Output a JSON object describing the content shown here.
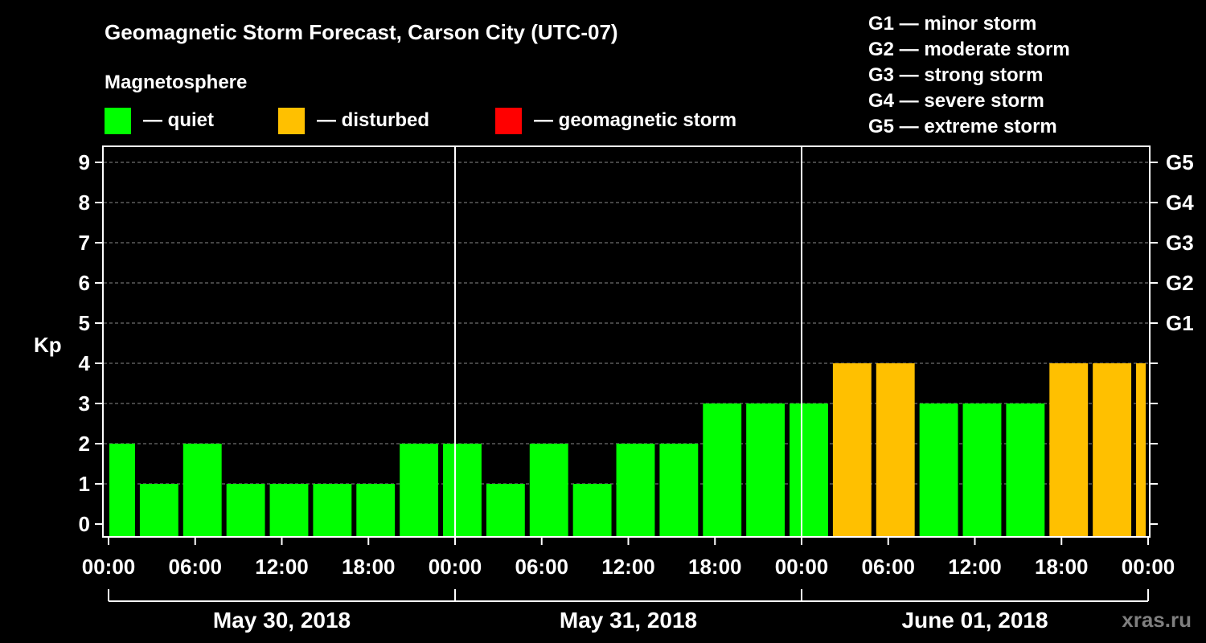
{
  "chart_data": {
    "type": "bar",
    "title": "Geomagnetic Storm Forecast, Carson City (UTC-07)",
    "legend_title": "Magnetosphere",
    "legend": [
      {
        "label": "— quiet",
        "color": "#00ff00"
      },
      {
        "label": "— disturbed",
        "color": "#ffc000"
      },
      {
        "label": "— geomagnetic storm",
        "color": "#ff0000"
      }
    ],
    "storm_scale": [
      "G1 — minor storm",
      "G2 — moderate storm",
      "G3 — strong storm",
      "G4 — severe storm",
      "G5 — extreme storm"
    ],
    "ylabel": "Kp",
    "ylim": [
      0,
      9
    ],
    "y_ticks": [
      "0",
      "1",
      "2",
      "3",
      "4",
      "5",
      "6",
      "7",
      "8",
      "9"
    ],
    "g_ticks": [
      {
        "kp": 5,
        "label": "G1"
      },
      {
        "kp": 6,
        "label": "G2"
      },
      {
        "kp": 7,
        "label": "G3"
      },
      {
        "kp": 8,
        "label": "G4"
      },
      {
        "kp": 9,
        "label": "G5"
      }
    ],
    "x_hours_total": 72,
    "x_tick_labels": [
      "00:00",
      "06:00",
      "12:00",
      "18:00",
      "00:00",
      "06:00",
      "12:00",
      "18:00",
      "00:00",
      "06:00",
      "12:00",
      "18:00",
      "00:00"
    ],
    "day_labels": [
      "May 30, 2018",
      "May 31, 2018",
      "June 01, 2018"
    ],
    "bars": [
      {
        "start": 0,
        "end": 2,
        "kp": 2,
        "state": "quiet"
      },
      {
        "start": 2,
        "end": 5,
        "kp": 1,
        "state": "quiet"
      },
      {
        "start": 5,
        "end": 8,
        "kp": 2,
        "state": "quiet"
      },
      {
        "start": 8,
        "end": 11,
        "kp": 1,
        "state": "quiet"
      },
      {
        "start": 11,
        "end": 14,
        "kp": 1,
        "state": "quiet"
      },
      {
        "start": 14,
        "end": 17,
        "kp": 1,
        "state": "quiet"
      },
      {
        "start": 17,
        "end": 20,
        "kp": 1,
        "state": "quiet"
      },
      {
        "start": 20,
        "end": 23,
        "kp": 2,
        "state": "quiet"
      },
      {
        "start": 23,
        "end": 26,
        "kp": 2,
        "state": "quiet"
      },
      {
        "start": 26,
        "end": 29,
        "kp": 1,
        "state": "quiet"
      },
      {
        "start": 29,
        "end": 32,
        "kp": 2,
        "state": "quiet"
      },
      {
        "start": 32,
        "end": 35,
        "kp": 1,
        "state": "quiet"
      },
      {
        "start": 35,
        "end": 38,
        "kp": 2,
        "state": "quiet"
      },
      {
        "start": 38,
        "end": 41,
        "kp": 2,
        "state": "quiet"
      },
      {
        "start": 41,
        "end": 44,
        "kp": 3,
        "state": "quiet"
      },
      {
        "start": 44,
        "end": 47,
        "kp": 3,
        "state": "quiet"
      },
      {
        "start": 47,
        "end": 50,
        "kp": 3,
        "state": "quiet"
      },
      {
        "start": 50,
        "end": 53,
        "kp": 4,
        "state": "disturbed"
      },
      {
        "start": 53,
        "end": 56,
        "kp": 4,
        "state": "disturbed"
      },
      {
        "start": 56,
        "end": 59,
        "kp": 3,
        "state": "quiet"
      },
      {
        "start": 59,
        "end": 62,
        "kp": 3,
        "state": "quiet"
      },
      {
        "start": 62,
        "end": 65,
        "kp": 3,
        "state": "quiet"
      },
      {
        "start": 65,
        "end": 68,
        "kp": 4,
        "state": "disturbed"
      },
      {
        "start": 68,
        "end": 71,
        "kp": 4,
        "state": "disturbed"
      },
      {
        "start": 71,
        "end": 72,
        "kp": 4,
        "state": "disturbed"
      }
    ],
    "watermark": "xras.ru"
  }
}
